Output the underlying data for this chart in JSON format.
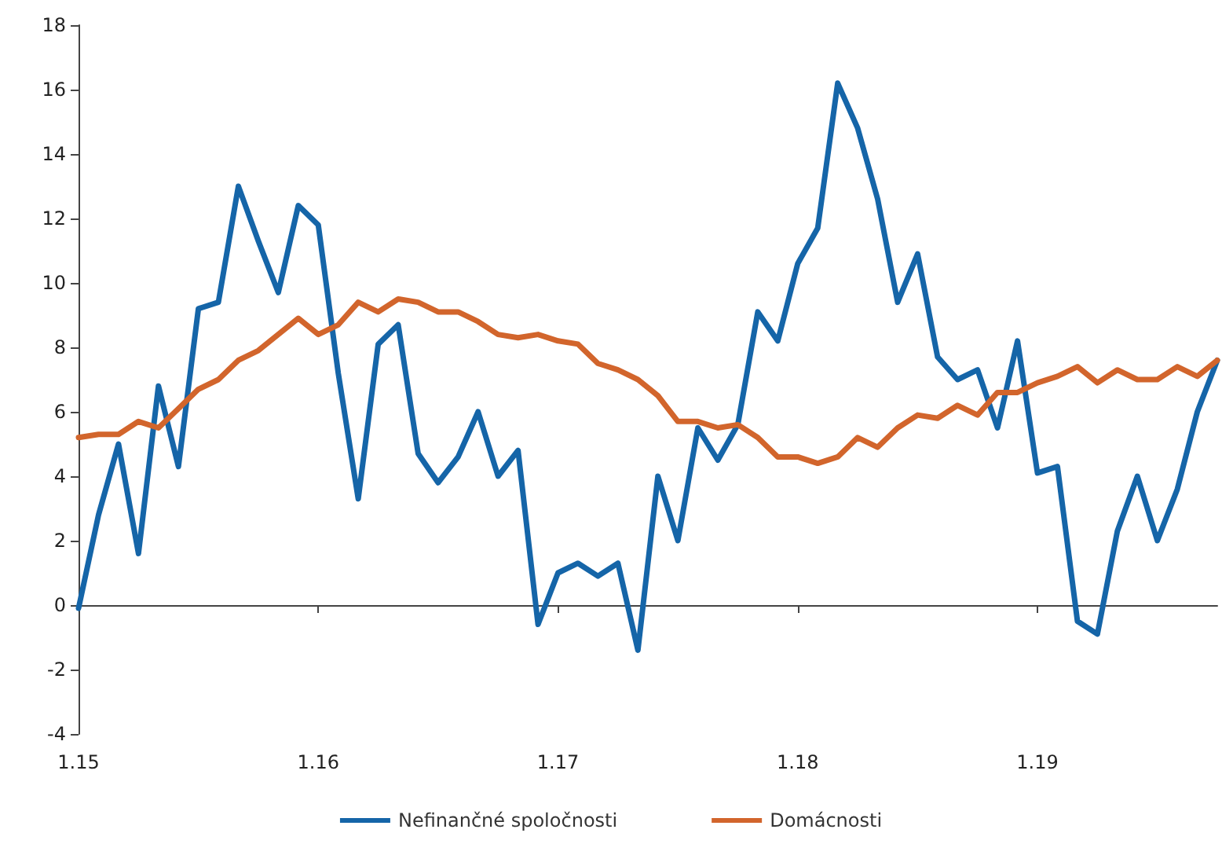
{
  "chart_data": {
    "type": "line",
    "categories": [
      "1.15",
      null,
      null,
      null,
      null,
      null,
      null,
      null,
      null,
      null,
      null,
      null,
      "1.16",
      null,
      null,
      null,
      null,
      null,
      null,
      null,
      null,
      null,
      null,
      null,
      "1.17",
      null,
      null,
      null,
      null,
      null,
      null,
      null,
      null,
      null,
      null,
      null,
      "1.18",
      null,
      null,
      null,
      null,
      null,
      null,
      null,
      null,
      null,
      null,
      null,
      "1.19",
      null,
      null,
      null,
      null,
      null,
      null,
      null,
      null,
      null
    ],
    "series": [
      {
        "name": "Nefinančné spoločnosti",
        "color": "#1565a8",
        "values": [
          -0.1,
          2.8,
          5.0,
          1.6,
          6.8,
          4.3,
          9.2,
          9.4,
          13.0,
          11.3,
          9.7,
          12.4,
          11.8,
          7.2,
          3.3,
          8.1,
          8.7,
          4.7,
          3.8,
          4.6,
          6.0,
          4.0,
          4.8,
          -0.6,
          1.0,
          1.3,
          0.9,
          1.3,
          -1.4,
          4.0,
          2.0,
          5.5,
          4.5,
          5.6,
          9.1,
          8.2,
          10.6,
          11.7,
          16.2,
          14.8,
          12.6,
          9.4,
          10.9,
          7.7,
          7.0,
          7.3,
          5.5,
          8.2,
          4.1,
          4.3,
          -0.5,
          -0.9,
          2.3,
          4.0,
          2.0,
          3.6,
          6.0,
          7.6
        ]
      },
      {
        "name": "Domácnosti",
        "color": "#d2652c",
        "values": [
          5.2,
          5.3,
          5.3,
          5.7,
          5.5,
          6.1,
          6.7,
          7.0,
          7.6,
          7.9,
          8.4,
          8.9,
          8.4,
          8.7,
          9.4,
          9.1,
          9.5,
          9.4,
          9.1,
          9.1,
          8.8,
          8.4,
          8.3,
          8.4,
          8.2,
          8.1,
          7.5,
          7.3,
          7.0,
          6.5,
          5.7,
          5.7,
          5.5,
          5.6,
          5.2,
          4.6,
          4.6,
          4.4,
          4.6,
          5.2,
          4.9,
          5.5,
          5.9,
          5.8,
          6.2,
          5.9,
          6.6,
          6.6,
          6.9,
          7.1,
          7.4,
          6.9,
          7.3,
          7.0,
          7.0,
          7.4,
          7.1,
          7.6
        ]
      }
    ],
    "ylim": [
      -4,
      18
    ],
    "yticks": [
      -4,
      -2,
      0,
      2,
      4,
      6,
      8,
      10,
      12,
      14,
      16,
      18
    ],
    "legend": "bottom",
    "marker": "none",
    "line_style": "solid"
  }
}
